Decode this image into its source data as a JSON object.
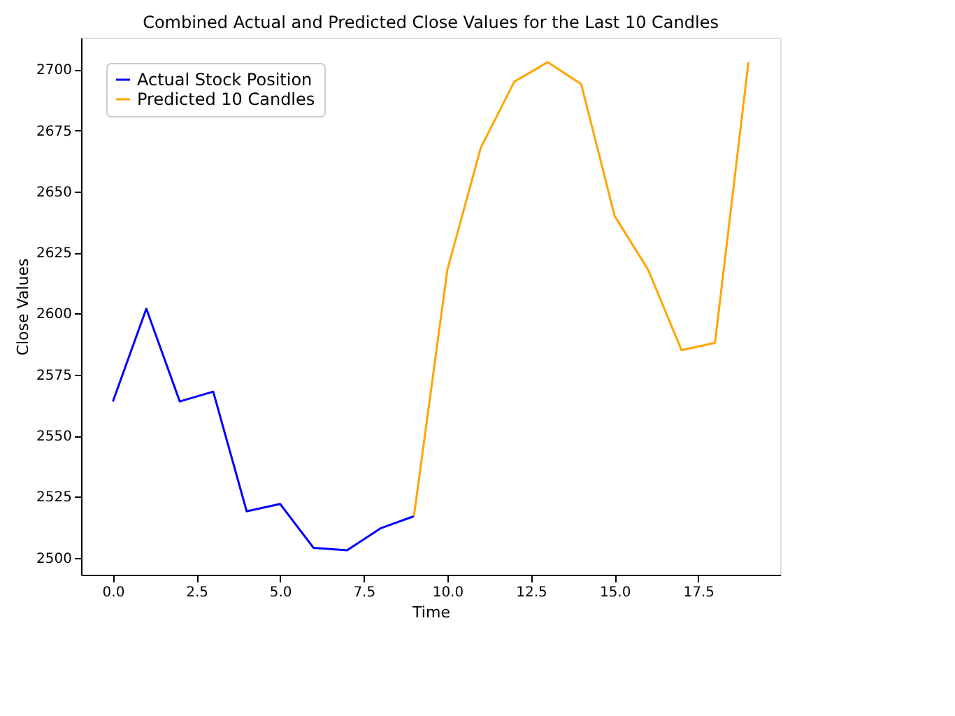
{
  "chart_data": {
    "type": "line",
    "title": "Combined Actual and Predicted Close Values for the Last 10 Candles",
    "xlabel": "Time",
    "ylabel": "Close Values",
    "series": [
      {
        "name": "Actual Stock Position",
        "color": "#0000ff",
        "x": [
          0,
          1,
          2,
          3,
          4,
          5,
          6,
          7,
          8,
          9
        ],
        "values": [
          2564,
          2602,
          2564,
          2568,
          2519,
          2522,
          2504,
          2503,
          2512,
          2517
        ]
      },
      {
        "name": "Predicted 10 Candles",
        "color": "#ffa500",
        "x": [
          9,
          10,
          11,
          12,
          13,
          14,
          15,
          16,
          17,
          18,
          19
        ],
        "values": [
          2517,
          2618,
          2668,
          2695,
          2703,
          2694,
          2640,
          2618,
          2585,
          2588,
          2703
        ]
      }
    ],
    "xlim": [
      -0.95,
      19.95
    ],
    "ylim": [
      2493,
      2713
    ],
    "xticks": [
      {
        "value": 0,
        "label": "0.0"
      },
      {
        "value": 2.5,
        "label": "2.5"
      },
      {
        "value": 5,
        "label": "5.0"
      },
      {
        "value": 7.5,
        "label": "7.5"
      },
      {
        "value": 10,
        "label": "10.0"
      },
      {
        "value": 12.5,
        "label": "12.5"
      },
      {
        "value": 15,
        "label": "15.0"
      },
      {
        "value": 17.5,
        "label": "17.5"
      }
    ],
    "yticks": [
      2500,
      2525,
      2550,
      2575,
      2600,
      2625,
      2650,
      2675,
      2700
    ],
    "legend": "top left",
    "grid": false,
    "marker": "none",
    "line_style": "solid"
  }
}
